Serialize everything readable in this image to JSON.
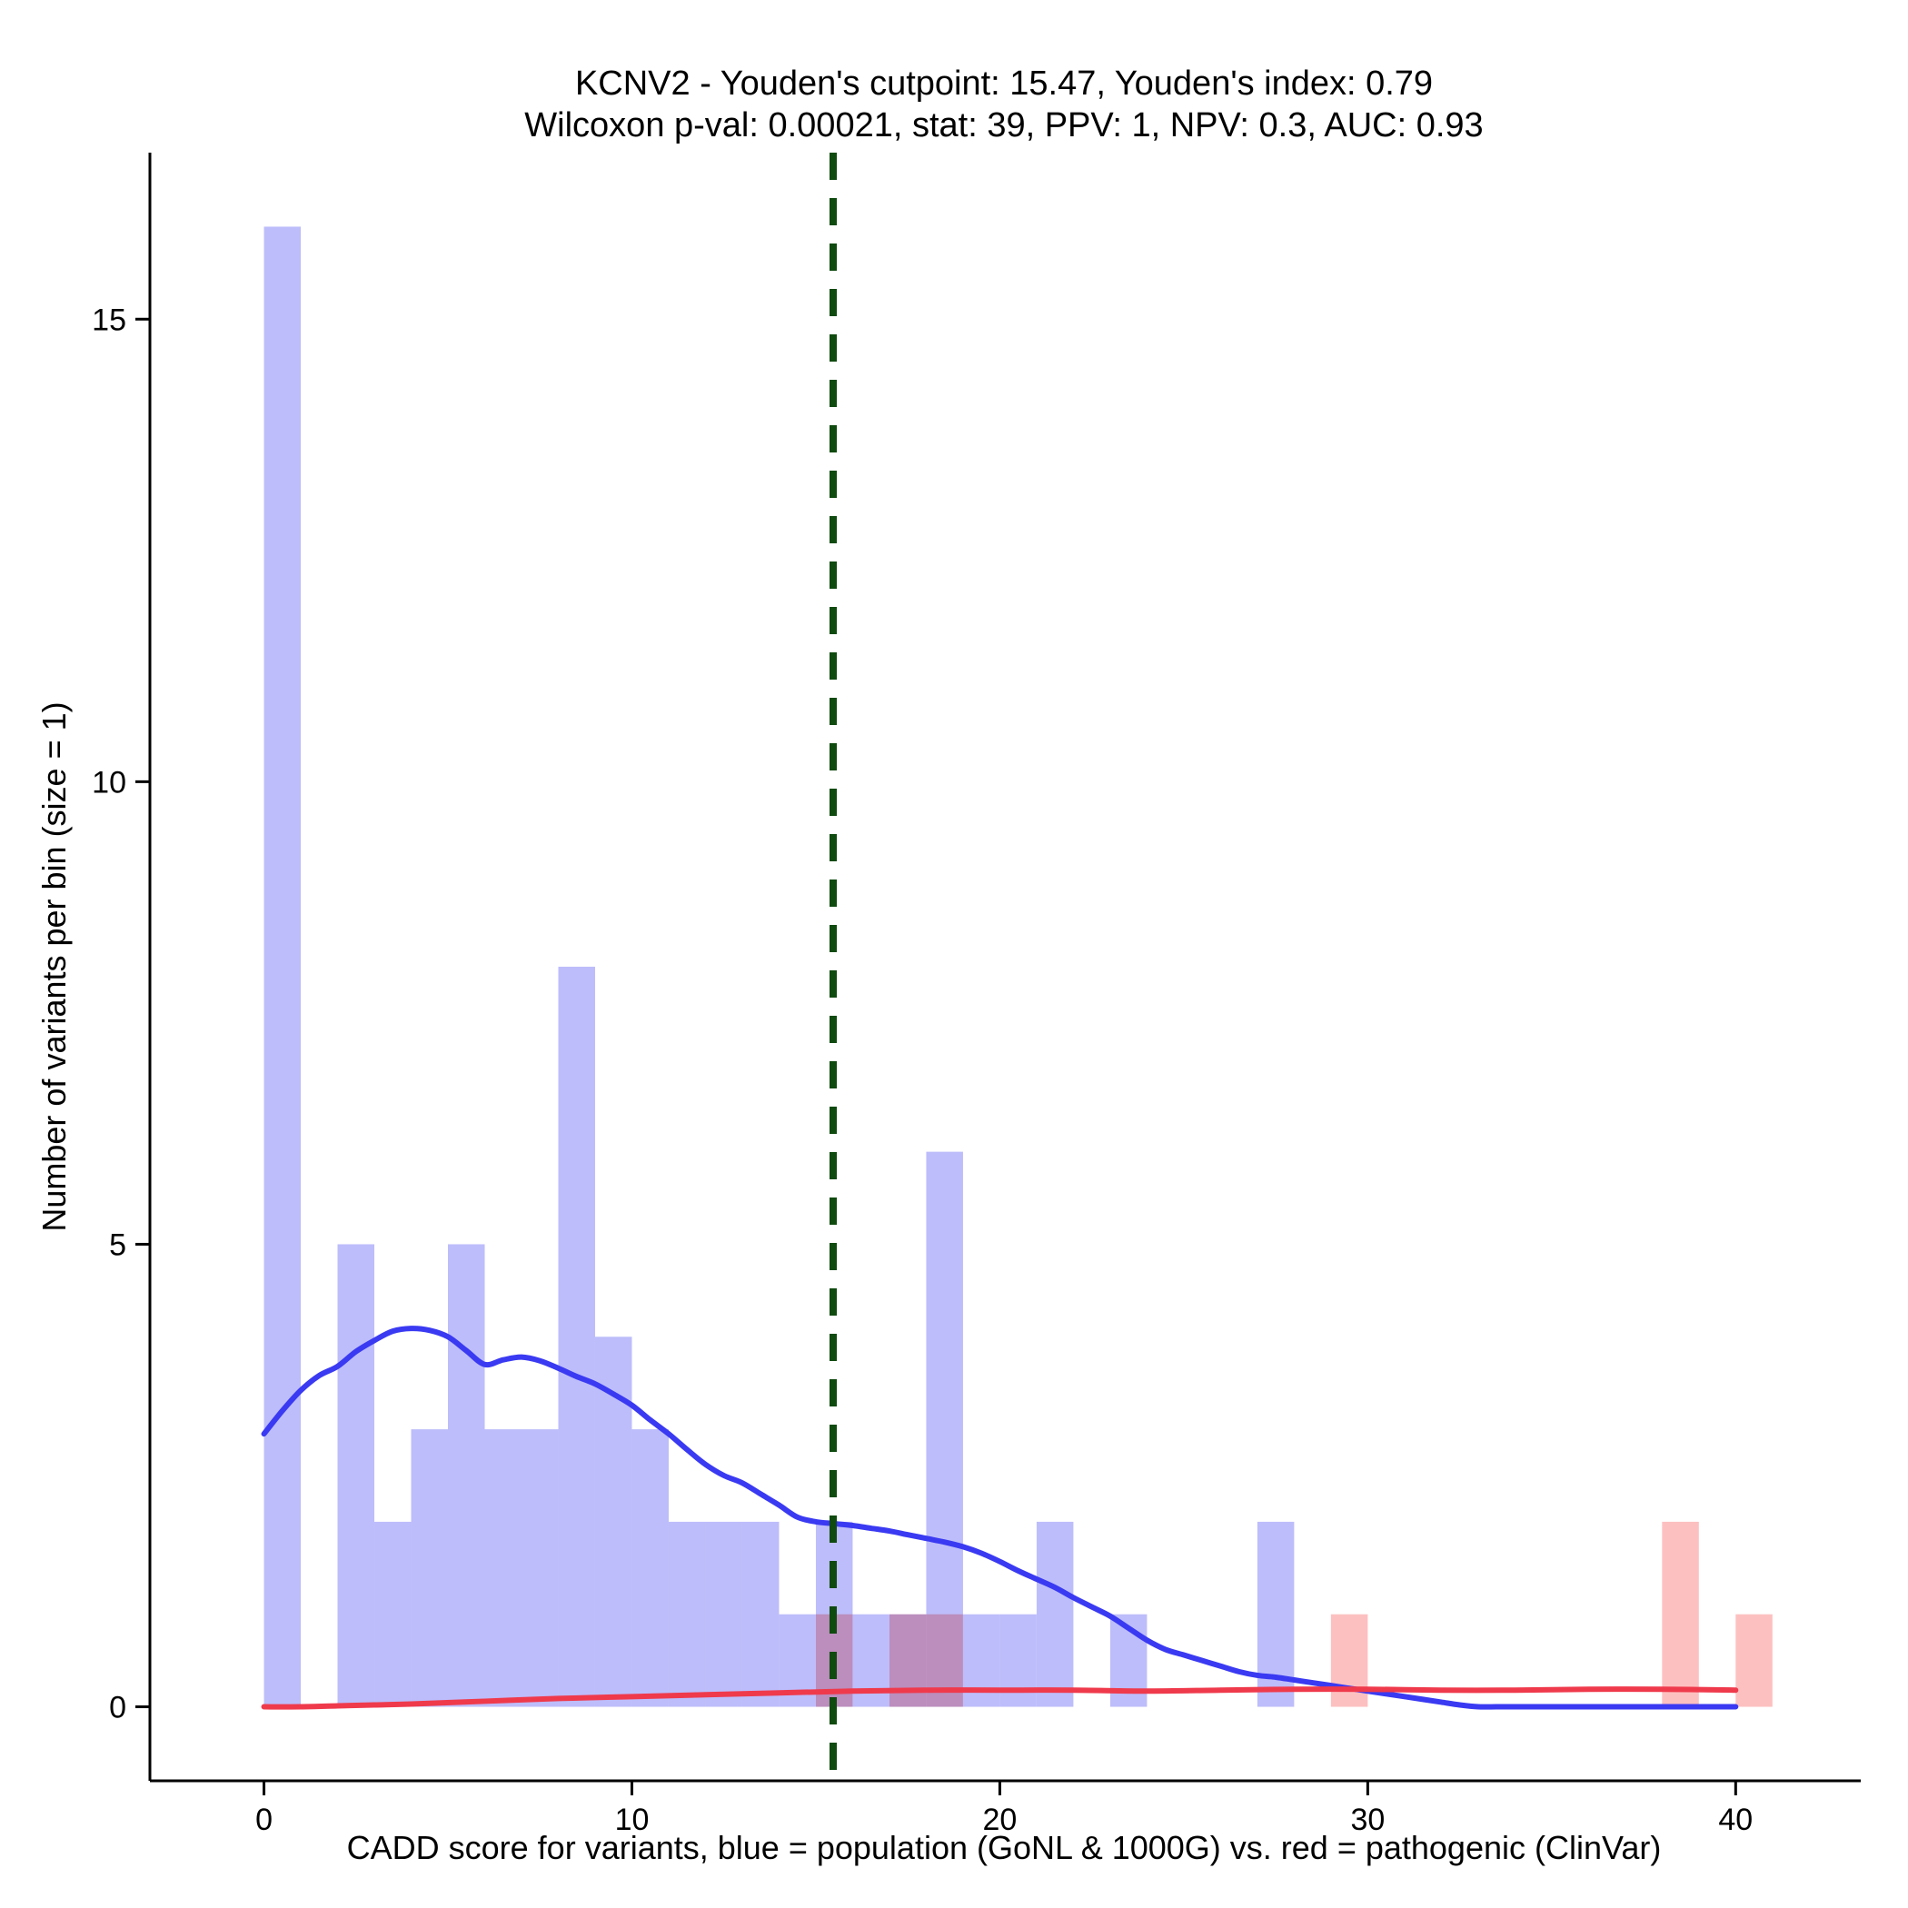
{
  "chart_data": {
    "type": "bar",
    "title": "KCNV2 - Youden's cutpoint: 15.47, Youden's index: 0.79",
    "subtitle": "Wilcoxon p-val: 0.00021, stat: 39, PPV: 1, NPV: 0.3, AUC: 0.93",
    "xlabel": "CADD score for variants, blue = population (GoNL & 1000G) vs. red = pathogenic (ClinVar)",
    "ylabel": "Number of variants per bin (size = 1)",
    "xlim": [
      -3.1,
      43.4
    ],
    "ylim": [
      -0.8,
      16.8
    ],
    "x_ticks": [
      0,
      10,
      20,
      30,
      40
    ],
    "y_ticks": [
      0,
      5,
      10,
      15
    ],
    "bin_size": 1,
    "cutpoint": 15.47,
    "colors": {
      "population": "#bdbdfb",
      "pathogenic": "#fdbdbd",
      "population_density": "#3a3af2",
      "pathogenic_density": "#ef3a4c",
      "cutpoint": "#0f4a0f"
    },
    "series": [
      {
        "name": "population (GoNL & 1000G)",
        "bins": [
          {
            "x0": 0,
            "count": 16
          },
          {
            "x0": 2,
            "count": 5
          },
          {
            "x0": 3,
            "count": 2
          },
          {
            "x0": 4,
            "count": 3
          },
          {
            "x0": 5,
            "count": 5
          },
          {
            "x0": 6,
            "count": 3
          },
          {
            "x0": 7,
            "count": 3
          },
          {
            "x0": 8,
            "count": 8
          },
          {
            "x0": 9,
            "count": 4
          },
          {
            "x0": 10,
            "count": 3
          },
          {
            "x0": 11,
            "count": 2
          },
          {
            "x0": 12,
            "count": 2
          },
          {
            "x0": 13,
            "count": 2
          },
          {
            "x0": 14,
            "count": 1
          },
          {
            "x0": 15,
            "count": 2
          },
          {
            "x0": 16,
            "count": 1
          },
          {
            "x0": 17,
            "count": 1
          },
          {
            "x0": 18,
            "count": 6
          },
          {
            "x0": 19,
            "count": 1
          },
          {
            "x0": 20,
            "count": 1
          },
          {
            "x0": 21,
            "count": 2
          },
          {
            "x0": 23,
            "count": 1
          },
          {
            "x0": 27,
            "count": 2
          }
        ]
      },
      {
        "name": "pathogenic (ClinVar)",
        "bins": [
          {
            "x0": 15,
            "count": 1
          },
          {
            "x0": 17,
            "count": 1
          },
          {
            "x0": 18,
            "count": 1
          },
          {
            "x0": 29,
            "count": 1
          },
          {
            "x0": 38,
            "count": 2
          },
          {
            "x0": 40,
            "count": 1
          }
        ]
      }
    ],
    "density": [
      {
        "name": "population density",
        "x": [
          0,
          0.5,
          1,
          1.5,
          2,
          2.5,
          3,
          3.5,
          4,
          4.5,
          5,
          5.5,
          6,
          6.5,
          7,
          7.5,
          8,
          8.5,
          9,
          9.5,
          10,
          10.5,
          11,
          11.5,
          12,
          12.5,
          13,
          13.5,
          14,
          14.5,
          15,
          15.5,
          16,
          16.5,
          17,
          17.5,
          18,
          18.5,
          19,
          19.5,
          20,
          20.5,
          21,
          21.5,
          22,
          22.5,
          23,
          23.5,
          24,
          24.5,
          25,
          25.5,
          26,
          26.5,
          27,
          27.5,
          28,
          28.5,
          29,
          29.5,
          30,
          30.5,
          31,
          31.5,
          32,
          32.5,
          33,
          33.5,
          34,
          35,
          36,
          37,
          38,
          39,
          40
        ],
        "y": [
          2.95,
          3.2,
          3.42,
          3.58,
          3.68,
          3.84,
          3.96,
          4.06,
          4.09,
          4.07,
          4.0,
          3.85,
          3.7,
          3.75,
          3.78,
          3.74,
          3.66,
          3.57,
          3.49,
          3.38,
          3.26,
          3.1,
          2.95,
          2.78,
          2.62,
          2.5,
          2.42,
          2.3,
          2.18,
          2.05,
          2.0,
          1.98,
          1.96,
          1.93,
          1.9,
          1.86,
          1.82,
          1.78,
          1.73,
          1.66,
          1.57,
          1.47,
          1.38,
          1.29,
          1.18,
          1.08,
          0.98,
          0.85,
          0.72,
          0.62,
          0.56,
          0.5,
          0.44,
          0.38,
          0.34,
          0.32,
          0.29,
          0.26,
          0.23,
          0.2,
          0.17,
          0.14,
          0.11,
          0.08,
          0.05,
          0.02,
          0.0,
          0.0,
          0.0,
          0.0,
          0.0,
          0.0,
          0.0,
          0.0,
          0.0
        ]
      },
      {
        "name": "pathogenic density",
        "x": [
          0,
          1,
          2,
          3,
          4,
          6,
          8,
          10,
          12,
          14,
          16,
          18,
          20,
          22,
          24,
          26,
          28,
          30,
          32,
          34,
          36,
          38,
          40
        ],
        "y": [
          0.0,
          0.0,
          0.01,
          0.02,
          0.03,
          0.06,
          0.09,
          0.11,
          0.13,
          0.15,
          0.17,
          0.18,
          0.18,
          0.18,
          0.17,
          0.18,
          0.19,
          0.19,
          0.18,
          0.18,
          0.19,
          0.19,
          0.18
        ]
      }
    ]
  }
}
